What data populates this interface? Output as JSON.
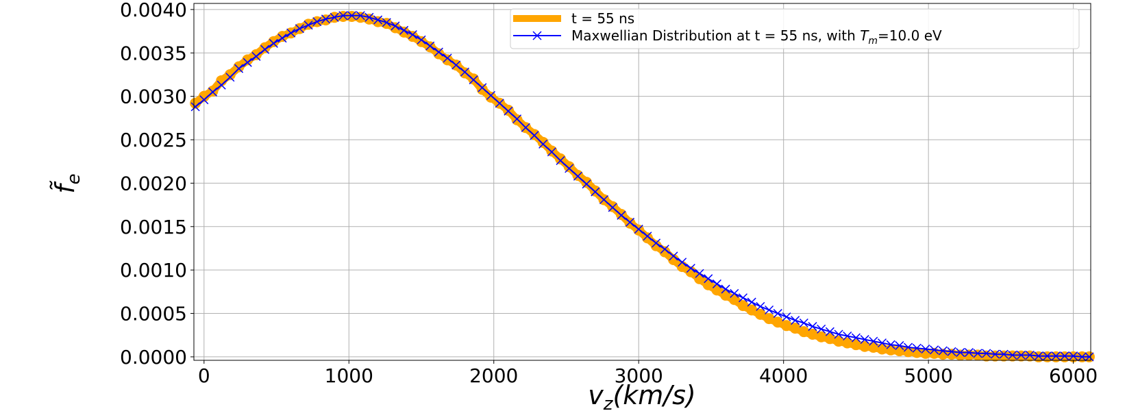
{
  "chart_data": {
    "type": "line",
    "title": "",
    "xlabel": "v_z(km/s)",
    "xlabel_parts": {
      "var": "v",
      "sub": "z",
      "unit": "(km/s)"
    },
    "ylabel": "f̃_e",
    "ylabel_parts": {
      "var": "f̃",
      "sub": "e"
    },
    "xlim": [
      -70,
      6120
    ],
    "ylim": [
      -4e-05,
      0.00407
    ],
    "x_ticks": [
      0,
      1000,
      2000,
      3000,
      4000,
      5000,
      6000
    ],
    "x_tick_labels": [
      "0",
      "1000",
      "2000",
      "3000",
      "4000",
      "5000",
      "6000"
    ],
    "y_ticks": [
      0.0,
      0.0005,
      0.001,
      0.0015,
      0.002,
      0.0025,
      0.003,
      0.0035,
      0.004
    ],
    "y_tick_labels": [
      "0.0000",
      "0.0005",
      "0.0010",
      "0.0015",
      "0.0020",
      "0.0025",
      "0.0030",
      "0.0035",
      "0.0040"
    ],
    "grid": true,
    "legend_position": "top-right",
    "series": [
      {
        "name": "t = 55 ns",
        "color": "#ffa500",
        "style": "thick-line-dots",
        "x": [
          -60,
          0,
          60,
          120,
          180,
          240,
          300,
          360,
          420,
          480,
          540,
          600,
          660,
          720,
          780,
          840,
          900,
          960,
          1020,
          1080,
          1140,
          1200,
          1260,
          1320,
          1380,
          1440,
          1500,
          1560,
          1620,
          1680,
          1740,
          1800,
          1860,
          1920,
          1980,
          2040,
          2100,
          2160,
          2220,
          2280,
          2340,
          2400,
          2460,
          2520,
          2580,
          2640,
          2700,
          2760,
          2820,
          2880,
          2940,
          3000,
          3060,
          3120,
          3180,
          3240,
          3300,
          3360,
          3420,
          3480,
          3540,
          3600,
          3660,
          3720,
          3780,
          3840,
          3900,
          3960,
          4020,
          4080,
          4140,
          4200,
          4260,
          4320,
          4380,
          4440,
          4500,
          4560,
          4620,
          4680,
          4740,
          4800,
          4860,
          4920,
          4980,
          5040,
          5100,
          5160,
          5220,
          5280,
          5340,
          5400,
          5460,
          5520,
          5580,
          5640,
          5700,
          5760,
          5820,
          5880,
          5940,
          6000,
          6060,
          6110
        ],
        "values": [
          0.00292,
          0.003,
          0.00306,
          0.00318,
          0.00325,
          0.00334,
          0.00342,
          0.00348,
          0.00356,
          0.00363,
          0.00369,
          0.00373,
          0.00378,
          0.00383,
          0.00386,
          0.00388,
          0.00391,
          0.00392,
          0.00392,
          0.00391,
          0.00389,
          0.00386,
          0.00384,
          0.00379,
          0.00374,
          0.00369,
          0.00363,
          0.00357,
          0.00349,
          0.00342,
          0.00336,
          0.00327,
          0.0032,
          0.00308,
          0.00299,
          0.00292,
          0.00284,
          0.00273,
          0.00264,
          0.00256,
          0.00247,
          0.00237,
          0.00228,
          0.00219,
          0.00209,
          0.00201,
          0.00191,
          0.00181,
          0.00173,
          0.00164,
          0.00154,
          0.00146,
          0.00137,
          0.00128,
          0.00121,
          0.00112,
          0.00104,
          0.00098,
          0.0009,
          0.00083,
          0.00077,
          0.00071,
          0.00066,
          0.00059,
          0.00054,
          0.00049,
          0.00044,
          0.0004,
          0.00036,
          0.00033,
          0.00029,
          0.00026,
          0.00023,
          0.00021,
          0.00018,
          0.00016,
          0.00014,
          0.00012,
          0.00011,
          9e-05,
          8e-05,
          7e-05,
          6e-05,
          5e-05,
          4e-05,
          4e-05,
          3e-05,
          3e-05,
          2e-05,
          2e-05,
          2e-05,
          1e-05,
          1e-05,
          1e-05,
          1e-05,
          1e-05,
          1e-05,
          0.0,
          0.0,
          0.0,
          0.0,
          0.0,
          0.0,
          0.0
        ]
      },
      {
        "name": "Maxwellian Distribution at t = 55 ns, with T_m=10.0 eV",
        "legend_parts": {
          "before": "Maxwellian Distribution at t = 55 ns, with ",
          "var": "T",
          "sub": "m",
          "after": "=10.0 eV"
        },
        "color": "#0000ff",
        "style": "line-x-markers",
        "x": [
          -60,
          0,
          60,
          120,
          180,
          240,
          300,
          360,
          420,
          480,
          540,
          600,
          660,
          720,
          780,
          840,
          900,
          960,
          1020,
          1080,
          1140,
          1200,
          1260,
          1320,
          1380,
          1440,
          1500,
          1560,
          1620,
          1680,
          1740,
          1800,
          1860,
          1920,
          1980,
          2040,
          2100,
          2160,
          2220,
          2280,
          2340,
          2400,
          2460,
          2520,
          2580,
          2640,
          2700,
          2760,
          2820,
          2880,
          2940,
          3000,
          3060,
          3120,
          3180,
          3240,
          3300,
          3360,
          3420,
          3480,
          3540,
          3600,
          3660,
          3720,
          3780,
          3840,
          3900,
          3960,
          4020,
          4080,
          4140,
          4200,
          4260,
          4320,
          4380,
          4440,
          4500,
          4560,
          4620,
          4680,
          4740,
          4800,
          4860,
          4920,
          4980,
          5040,
          5100,
          5160,
          5220,
          5280,
          5340,
          5400,
          5460,
          5520,
          5580,
          5640,
          5700,
          5760,
          5820,
          5880,
          5940,
          6000,
          6060,
          6110
        ],
        "values": [
          0.00288,
          0.00296,
          0.00305,
          0.00313,
          0.00322,
          0.00332,
          0.00339,
          0.00346,
          0.00354,
          0.00361,
          0.00367,
          0.00373,
          0.00378,
          0.00382,
          0.00386,
          0.00389,
          0.00391,
          0.00393,
          0.00393,
          0.00393,
          0.00391,
          0.00388,
          0.00385,
          0.00381,
          0.00376,
          0.00371,
          0.00365,
          0.00358,
          0.00351,
          0.00344,
          0.00336,
          0.00328,
          0.00319,
          0.0031,
          0.00301,
          0.00292,
          0.00283,
          0.00274,
          0.00264,
          0.00255,
          0.00245,
          0.00236,
          0.00226,
          0.00217,
          0.00208,
          0.00199,
          0.0019,
          0.00181,
          0.00172,
          0.00163,
          0.00155,
          0.00147,
          0.00139,
          0.00131,
          0.00124,
          0.00116,
          0.00109,
          0.00102,
          0.00096,
          0.0009,
          0.00084,
          0.00078,
          0.00073,
          0.00068,
          0.00063,
          0.00058,
          0.00054,
          0.0005,
          0.00046,
          0.00042,
          0.00039,
          0.00035,
          0.00032,
          0.00029,
          0.00026,
          0.00024,
          0.00022,
          0.0002,
          0.00018,
          0.00016,
          0.00014,
          0.00013,
          0.00011,
          0.0001,
          9e-05,
          8e-05,
          7e-05,
          6e-05,
          5e-05,
          5e-05,
          4e-05,
          4e-05,
          3e-05,
          3e-05,
          2e-05,
          2e-05,
          2e-05,
          1e-05,
          1e-05,
          1e-05,
          1e-05,
          1e-05,
          0.0,
          0.0
        ]
      }
    ]
  }
}
